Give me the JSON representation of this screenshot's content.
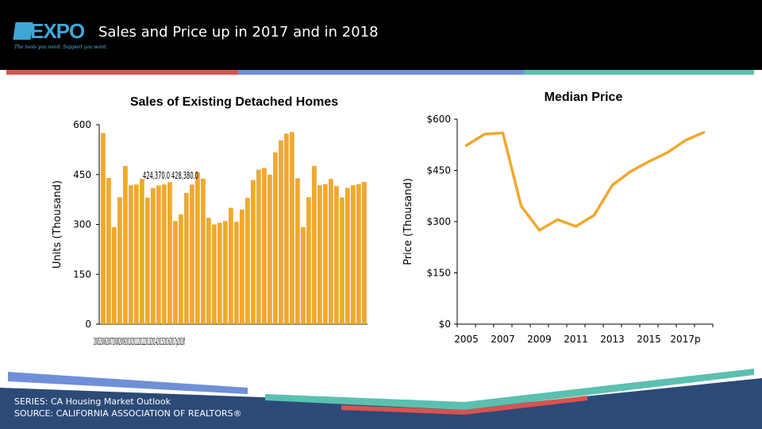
{
  "header": {
    "logo_text": "EXPO",
    "logo_tagline": "The tools you need. Support you want.",
    "title": "Sales and Price up in 2017 and in 2018"
  },
  "colors": {
    "bar": "#f0a830",
    "line": "#f0a830",
    "stripe_red": "#d9534f",
    "stripe_blue": "#6f8fd8",
    "stripe_teal": "#5bc0b0",
    "footer_navy": "#2c4a78"
  },
  "chart_data": [
    {
      "type": "bar",
      "title": "Sales of Existing Detached Homes",
      "ylabel": "Units (Thousand)",
      "ylim": [
        0,
        600
      ],
      "yticks": [
        0,
        150,
        300,
        450,
        600
      ],
      "x_tick_labels": "2005200620072008200920102011201220132014201520162017p2018f",
      "values": [
        575,
        440,
        292,
        382,
        476,
        418,
        420,
        437,
        381,
        410,
        417,
        420,
        427,
        310,
        330,
        395,
        420,
        457,
        438,
        320,
        300,
        305,
        310,
        350,
        308,
        345,
        380,
        434,
        465,
        470,
        450,
        517,
        553,
        573,
        578,
        439,
        292,
        382,
        476,
        418,
        421,
        437,
        415,
        381,
        410,
        418,
        421,
        428
      ],
      "overlapping_labels": "424,370.0  428,380.0"
    },
    {
      "type": "line",
      "title": "Median Price",
      "ylabel": "Price (Thousand)",
      "ylim": [
        0,
        600
      ],
      "yticks": [
        "$0",
        "$150",
        "$300",
        "$450",
        "$600"
      ],
      "x_tick_labels": [
        "2005",
        "2007",
        "2009",
        "2011",
        "2013",
        "2015",
        "2017p"
      ],
      "values": [
        523,
        556,
        560,
        346,
        275,
        306,
        286,
        319,
        407,
        447,
        476,
        502,
        538,
        561
      ]
    }
  ],
  "footer": {
    "series": "SERIES: CA Housing Market Outlook",
    "source": "SOURCE:  CALIFORNIA ASSOCIATION OF REALTORS®"
  }
}
